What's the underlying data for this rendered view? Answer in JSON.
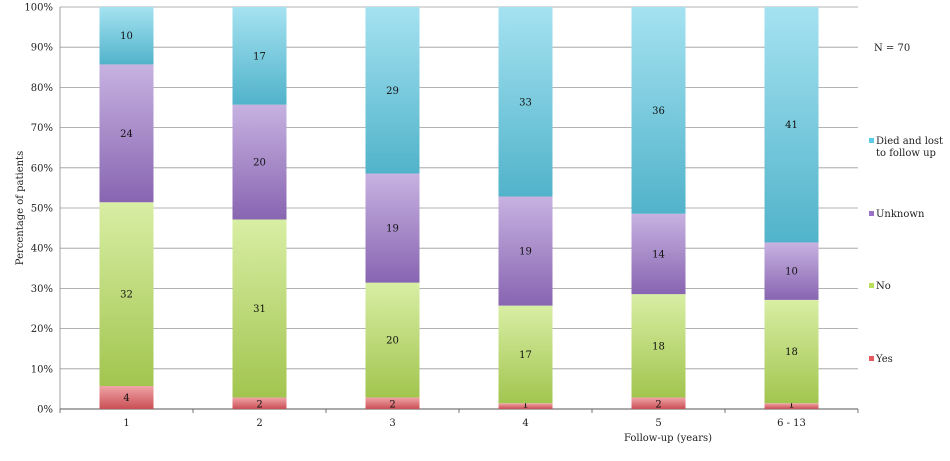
{
  "chart_data": {
    "type": "bar",
    "stacked": true,
    "normalized_percent": true,
    "categories": [
      "1",
      "2",
      "3",
      "4",
      "5",
      "6 - 13"
    ],
    "series": [
      {
        "name": "Yes",
        "values": [
          4,
          2,
          2,
          1,
          2,
          1
        ],
        "color": "#e45a5f"
      },
      {
        "name": "No",
        "values": [
          32,
          31,
          20,
          17,
          18,
          18
        ],
        "color": "#b8e05a"
      },
      {
        "name": "Unknown",
        "values": [
          24,
          20,
          19,
          19,
          14,
          10
        ],
        "color": "#9a73c9"
      },
      {
        "name": "Died and lost to follow up",
        "values": [
          10,
          17,
          29,
          33,
          36,
          41
        ],
        "color": "#5ccbe6"
      }
    ],
    "legend_lines": {
      "Yes": [
        "Yes"
      ],
      "No": [
        "No"
      ],
      "Unknown": [
        "Unknown"
      ],
      "Died and lost to follow up": [
        "Died and lost",
        "to follow up"
      ]
    },
    "legend_placement": "right",
    "annotation": "N = 70",
    "xlabel": "Follow-up    (years)",
    "ylabel": "Percentage of patients",
    "ylim": [
      0,
      100
    ],
    "yticks": [
      "0%",
      "10%",
      "20%",
      "30%",
      "40%",
      "50%",
      "60%",
      "70%",
      "80%",
      "90%",
      "100%"
    ],
    "grid": true
  }
}
